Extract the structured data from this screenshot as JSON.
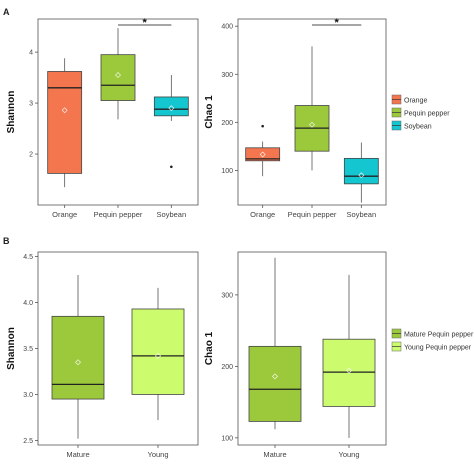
{
  "figure": {
    "panel_a_letter": "A",
    "panel_b_letter": "B"
  },
  "legends": [
    {
      "entries": [
        {
          "label": "Orange",
          "color": "#F4764E"
        },
        {
          "label": "Pequin pepper",
          "color": "#9CC93C"
        },
        {
          "label": "Soybean",
          "color": "#14C6D0"
        }
      ]
    },
    {
      "entries": [
        {
          "label": "Mature Pequin pepper",
          "color": "#9CC93C"
        },
        {
          "label": "Young Pequin pepper",
          "color": "#CCFB6E"
        }
      ]
    }
  ],
  "chart_data": [
    {
      "type": "box",
      "panel": "A",
      "ylabel": "Shannon",
      "xlabel": "",
      "ylim": [
        1.0,
        4.65
      ],
      "yticks": [
        2,
        3,
        4
      ],
      "categories": [
        "Orange",
        "Pequin pepper",
        "Soybean"
      ],
      "boxes": [
        {
          "category": "Orange",
          "color": "#F4764E",
          "min": 1.35,
          "q1": 1.62,
          "median": 3.3,
          "q3": 3.62,
          "max": 3.88,
          "mean": 2.86,
          "outliers": []
        },
        {
          "category": "Pequin pepper",
          "color": "#9CC93C",
          "min": 2.68,
          "q1": 3.05,
          "median": 3.35,
          "q3": 3.95,
          "max": 4.47,
          "mean": 3.55,
          "outliers": []
        },
        {
          "category": "Soybean",
          "color": "#14C6D0",
          "min": 2.65,
          "q1": 2.75,
          "median": 2.88,
          "q3": 3.12,
          "max": 3.55,
          "mean": 2.9,
          "outliers": [
            1.75
          ]
        }
      ],
      "significance": {
        "from": "Pequin pepper",
        "to": "Soybean",
        "label": "*"
      },
      "grid": false
    },
    {
      "type": "box",
      "panel": "A",
      "ylabel": "Chao 1",
      "xlabel": "",
      "ylim": [
        28,
        415
      ],
      "yticks": [
        100,
        200,
        300,
        400
      ],
      "categories": [
        "Orange",
        "Pequin pepper",
        "Soybean"
      ],
      "boxes": [
        {
          "category": "Orange",
          "color": "#F4764E",
          "min": 88,
          "q1": 120,
          "median": 124,
          "q3": 147,
          "max": 160,
          "mean": 133,
          "outliers": [
            192
          ]
        },
        {
          "category": "Pequin pepper",
          "color": "#9CC93C",
          "min": 100,
          "q1": 140,
          "median": 188,
          "q3": 235,
          "max": 358,
          "mean": 195,
          "outliers": []
        },
        {
          "category": "Soybean",
          "color": "#14C6D0",
          "min": 33,
          "q1": 72,
          "median": 88,
          "q3": 125,
          "max": 158,
          "mean": 90,
          "outliers": []
        }
      ],
      "significance": {
        "from": "Pequin pepper",
        "to": "Soybean",
        "label": "*"
      },
      "grid": false
    },
    {
      "type": "box",
      "panel": "B",
      "ylabel": "Shannon",
      "xlabel": "",
      "ylim": [
        2.45,
        4.55
      ],
      "yticks": [
        2.5,
        3.0,
        3.5,
        4.0,
        4.5
      ],
      "categories": [
        "Mature",
        "Young"
      ],
      "boxes": [
        {
          "category": "Mature",
          "color": "#9CC93C",
          "min": 2.52,
          "q1": 2.95,
          "median": 3.11,
          "q3": 3.85,
          "max": 4.3,
          "mean": 3.35,
          "outliers": []
        },
        {
          "category": "Young",
          "color": "#CCFB6E",
          "min": 2.72,
          "q1": 3.0,
          "median": 3.42,
          "q3": 3.93,
          "max": 4.16,
          "mean": 3.42,
          "outliers": []
        }
      ],
      "grid": false
    },
    {
      "type": "box",
      "panel": "B",
      "ylabel": "Chao 1",
      "xlabel": "",
      "ylim": [
        90,
        360
      ],
      "yticks": [
        100,
        200,
        300
      ],
      "categories": [
        "Mature",
        "Young"
      ],
      "boxes": [
        {
          "category": "Mature",
          "color": "#9CC93C",
          "min": 112,
          "q1": 123,
          "median": 168,
          "q3": 228,
          "max": 352,
          "mean": 186,
          "outliers": []
        },
        {
          "category": "Young",
          "color": "#CCFB6E",
          "min": 100,
          "q1": 144,
          "median": 192,
          "q3": 238,
          "max": 328,
          "mean": 194,
          "outliers": []
        }
      ],
      "grid": false
    }
  ]
}
